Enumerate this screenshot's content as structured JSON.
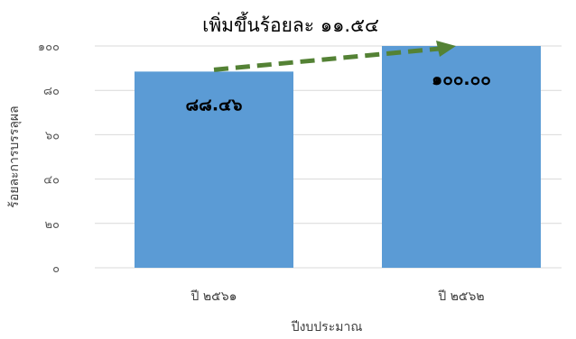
{
  "chart_data": {
    "type": "bar",
    "title": "เพิ่มขึ้นร้อยละ ๑๑.๕๔",
    "xlabel": "ปีงบประมาณ",
    "ylabel": "ร้อยละการบรรลุผล",
    "categories": [
      "ปี ๒๕๖๑",
      "ปี ๒๕๖๒"
    ],
    "values": [
      88.46,
      100.0
    ],
    "data_labels": [
      "๘๘.๔๖",
      "๑๐๐.๐๐"
    ],
    "ylim": [
      0,
      100
    ],
    "yticks": [
      0,
      20,
      40,
      60,
      80,
      100
    ],
    "ytick_labels": [
      "๐",
      "๒๐",
      "๔๐",
      "๖๐",
      "๘๐",
      "๑๐๐"
    ],
    "grid": true,
    "legend": "none",
    "annotation": "dashed-arrow",
    "colors": {
      "bar": "#5B9BD5",
      "arrow": "#548235",
      "grid": "#D9D9D9"
    }
  }
}
